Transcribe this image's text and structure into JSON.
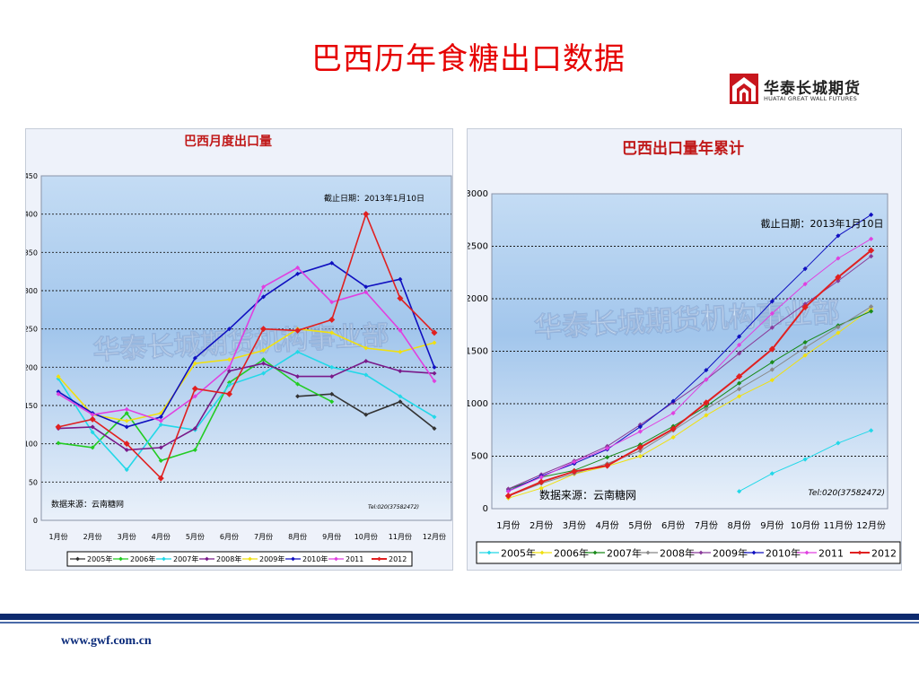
{
  "slide": {
    "title": "巴西历年食糖出口数据",
    "footer_url": "www.gwf.com.cn"
  },
  "logo": {
    "name_cn": "华泰长城期货",
    "name_en": "HUATAI GREAT WALL FUTURES",
    "colors": {
      "mark": "#c8161d"
    }
  },
  "chart_data": [
    {
      "type": "line",
      "title": "巴西月度出口量",
      "categories": [
        "1月份",
        "2月份",
        "3月份",
        "4月份",
        "5月份",
        "6月份",
        "7月份",
        "8月份",
        "9月份",
        "10月份",
        "11月份",
        "12月份"
      ],
      "ylim": [
        0,
        450
      ],
      "yticks": [
        0,
        50,
        100,
        150,
        200,
        250,
        300,
        350,
        400,
        450
      ],
      "grid": true,
      "legend_position": "bottom",
      "annotations": [
        "截止日期：2013年1月10日",
        "数据来源：云南糖网",
        "Tel:020(37582472)",
        "华泰长城期货机构事业部"
      ],
      "series": [
        {
          "name": "2005年",
          "color": "#333333",
          "values": [
            null,
            null,
            null,
            null,
            null,
            null,
            null,
            162,
            165,
            138,
            155,
            120
          ]
        },
        {
          "name": "2006年",
          "color": "#22cc22",
          "values": [
            101,
            95,
            140,
            78,
            92,
            180,
            210,
            178,
            155,
            null,
            null,
            null
          ]
        },
        {
          "name": "2007年",
          "color": "#22d8e8",
          "values": [
            185,
            115,
            66,
            125,
            118,
            177,
            192,
            220,
            200,
            190,
            162,
            135
          ]
        },
        {
          "name": "2008年",
          "color": "#7a1a8a",
          "values": [
            120,
            122,
            92,
            95,
            120,
            195,
            205,
            188,
            188,
            208,
            195,
            192
          ]
        },
        {
          "name": "2009年",
          "color": "#f0e010",
          "values": [
            188,
            138,
            130,
            140,
            205,
            210,
            222,
            250,
            245,
            225,
            220,
            232
          ]
        },
        {
          "name": "2010年",
          "color": "#1010c0",
          "values": [
            168,
            140,
            122,
            135,
            212,
            250,
            292,
            322,
            336,
            305,
            315,
            200
          ]
        },
        {
          "name": "2011",
          "color": "#e040e0",
          "values": [
            165,
            138,
            145,
            130,
            162,
            200,
            305,
            330,
            285,
            298,
            248,
            182
          ]
        },
        {
          "name": "2012",
          "color": "#e02020",
          "values": [
            122,
            132,
            100,
            55,
            172,
            165,
            250,
            248,
            262,
            400,
            290,
            245
          ]
        }
      ]
    },
    {
      "type": "line",
      "title": "巴西出口量年累计",
      "categories": [
        "1月份",
        "2月份",
        "3月份",
        "4月份",
        "5月份",
        "6月份",
        "7月份",
        "8月份",
        "9月份",
        "10月份",
        "11月份",
        "12月份"
      ],
      "ylim": [
        0,
        3000
      ],
      "yticks": [
        0,
        500,
        1000,
        1500,
        2000,
        2500,
        3000
      ],
      "grid": true,
      "legend_position": "bottom",
      "annotations": [
        "截止日期：2013年1月10日",
        "数据来源：云南糖网",
        "Tel:020(37582472)",
        "华泰长城期货机构事业部"
      ],
      "series": [
        {
          "name": "2005年",
          "color": "#22d8e8",
          "values": [
            null,
            null,
            null,
            null,
            null,
            null,
            null,
            165,
            335,
            470,
            625,
            745
          ]
        },
        {
          "name": "2006年",
          "color": "#f0e010",
          "values": [
            100,
            195,
            330,
            405,
            500,
            680,
            890,
            1070,
            1225,
            1460,
            1675,
            1905
          ]
        },
        {
          "name": "2007年",
          "color": "#1a8a1a",
          "values": [
            185,
            300,
            365,
            490,
            610,
            785,
            975,
            1195,
            1395,
            1585,
            1745,
            1880
          ]
        },
        {
          "name": "2008年",
          "color": "#888888",
          "values": [
            120,
            240,
            335,
            430,
            550,
            745,
            950,
            1140,
            1325,
            1535,
            1730,
            1925
          ]
        },
        {
          "name": "2009年",
          "color": "#8a3a9a",
          "values": [
            188,
            325,
            455,
            595,
            800,
            1010,
            1230,
            1480,
            1725,
            1950,
            2170,
            2405
          ]
        },
        {
          "name": "2010年",
          "color": "#1010c0",
          "values": [
            168,
            310,
            430,
            565,
            780,
            1025,
            1320,
            1640,
            1975,
            2285,
            2600,
            2800
          ]
        },
        {
          "name": "2011",
          "color": "#e040e0",
          "values": [
            165,
            300,
            445,
            575,
            735,
            910,
            1230,
            1560,
            1860,
            2140,
            2385,
            2570
          ]
        },
        {
          "name": "2012",
          "color": "#e02020",
          "values": [
            122,
            255,
            355,
            410,
            585,
            760,
            1010,
            1260,
            1520,
            1920,
            2205,
            2460
          ]
        }
      ]
    }
  ]
}
